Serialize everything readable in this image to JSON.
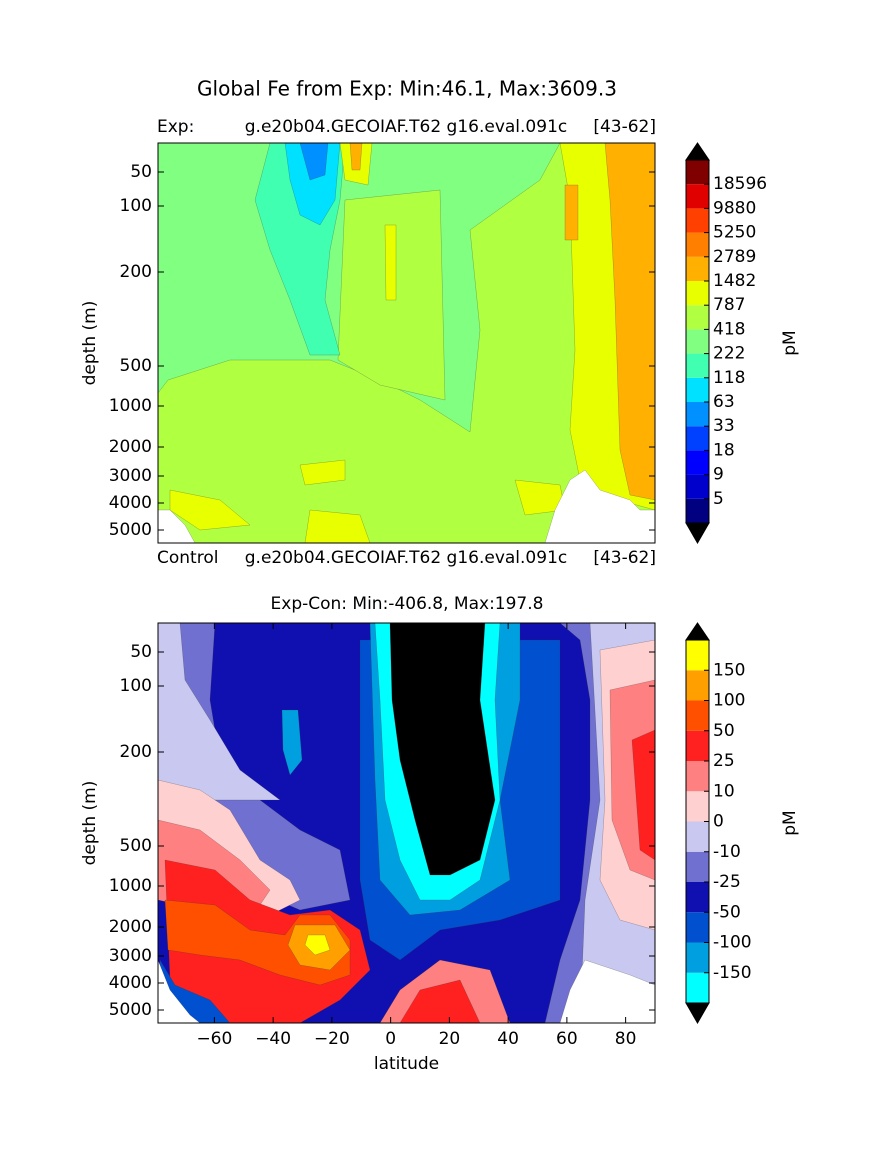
{
  "chart_data": [
    {
      "type": "contour",
      "title": "Global Fe from Exp: Min:46.1, Max:3609.3",
      "subtitle_left": "Exp:",
      "subtitle_center": "g.e20b04.GECOIAF.T62 g16.eval.091c",
      "subtitle_right": "[43-62]",
      "ylabel": "depth (m)",
      "ylim": [
        5,
        5500
      ],
      "yticks": [
        50,
        100,
        200,
        500,
        1000,
        2000,
        3000,
        4000,
        5000
      ],
      "colorbar_label": "pM",
      "levels": [
        5,
        9,
        18,
        33,
        63,
        118,
        222,
        418,
        787,
        1482,
        2789,
        5250,
        9880,
        18596
      ],
      "colors": [
        "#000080",
        "#0000cc",
        "#0000ff",
        "#0040ff",
        "#0090ff",
        "#00e0ff",
        "#40ffb0",
        "#80ff80",
        "#b0ff40",
        "#e8ff00",
        "#ffb000",
        "#ff8000",
        "#ff4000",
        "#e00000",
        "#800000"
      ],
      "under_color": "#000000",
      "over_color": "#000000"
    },
    {
      "type": "contour",
      "control_left": "Control",
      "control_center": "g.e20b04.GECOIAF.T62 g16.eval.091c",
      "control_right": "[43-62]",
      "title": "Exp-Con: Min:-406.8, Max:197.8",
      "xlabel": "latitude",
      "ylabel": "depth (m)",
      "xlim": [
        -79.2,
        90
      ],
      "xticks": [
        {
          "value": -60,
          "label": "−60"
        },
        {
          "value": -40,
          "label": "−40"
        },
        {
          "value": -20,
          "label": "−20"
        },
        0,
        20,
        40,
        60,
        80
      ],
      "ylim": [
        5,
        5500
      ],
      "yticks": [
        50,
        100,
        200,
        500,
        1000,
        2000,
        3000,
        4000,
        5000
      ],
      "colorbar_label": "pM",
      "levels": [
        -150,
        -100,
        -50,
        -25,
        -10,
        0,
        10,
        25,
        50,
        100,
        150
      ],
      "colors": [
        "#00ffff",
        "#00a0e0",
        "#0050d0",
        "#1010b0",
        "#7070d0",
        "#c8c8f0",
        "#ffd0d0",
        "#ff8080",
        "#ff2020",
        "#ff5000",
        "#ffa000",
        "#ffff00"
      ],
      "under_color": "#000000",
      "over_color": "#000000"
    }
  ]
}
